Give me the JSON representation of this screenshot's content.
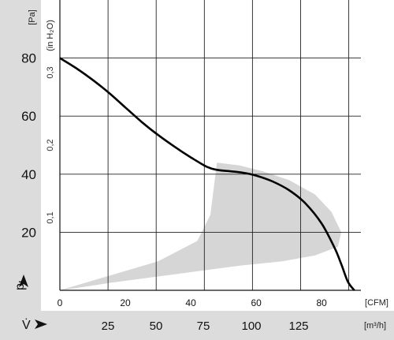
{
  "chart_data": {
    "type": "line",
    "y_unit": "[Pa]",
    "y2_unit": "(in H₂O)",
    "x_unit": "[CFM]",
    "x2_unit": "[m³/h]",
    "y_axis_symbol": "p",
    "y_axis_symbol_sub": "f",
    "x2_axis_symbol": "V̇",
    "x_ticks": [
      0,
      20,
      40,
      60,
      80
    ],
    "x_tick_labels": [
      "0",
      "20",
      "40",
      "60",
      "80"
    ],
    "x_gridlines": [
      0,
      14.72,
      29.43,
      44.15,
      58.86,
      73.58,
      88.29
    ],
    "xlim": [
      0,
      92
    ],
    "y_ticks": [
      20,
      40,
      60,
      80
    ],
    "y_tick_labels": [
      "20",
      "40",
      "60",
      "80"
    ],
    "ylim": [
      0,
      100
    ],
    "y2_ticks": [
      0.1,
      0.2,
      0.3
    ],
    "y2_tick_labels": [
      "0,1",
      "0,2",
      "0,3"
    ],
    "x2_ticks": [
      25,
      50,
      75,
      100,
      125
    ],
    "x2_tick_labels": [
      "25",
      "50",
      "75",
      "100",
      "125"
    ],
    "grid": true,
    "series": [
      {
        "type": "line",
        "color": "#000000",
        "x": [
          0,
          5,
          10,
          15,
          20,
          25,
          30,
          35,
          40,
          45,
          48,
          52,
          56,
          60,
          65,
          70,
          75,
          80,
          84,
          86,
          88,
          90
        ],
        "y": [
          80,
          76.5,
          72.5,
          68,
          63,
          58,
          53.5,
          49.5,
          45.8,
          42.5,
          41.5,
          41,
          40.5,
          39.5,
          37.5,
          34.5,
          30,
          23,
          14.5,
          9,
          3,
          0
        ]
      }
    ],
    "shaded_region": {
      "color": "#d6d6d6",
      "x": [
        0,
        15,
        30,
        42,
        46,
        48,
        55,
        62,
        70,
        78,
        83,
        86,
        85,
        78,
        68,
        55,
        45,
        35,
        25,
        15,
        5,
        0
      ],
      "y": [
        0,
        5,
        10,
        17,
        26,
        44,
        43,
        41,
        38,
        33,
        27,
        20,
        15,
        12,
        10,
        8.5,
        7,
        5.5,
        4,
        2.5,
        0.8,
        0
      ]
    }
  }
}
